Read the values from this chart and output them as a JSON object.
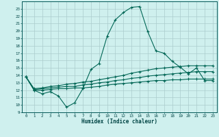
{
  "xlabel": "Humidex (Indice chaleur)",
  "bg_color": "#cff0ee",
  "grid_color": "#aacccc",
  "line_color": "#006655",
  "xlim": [
    -0.5,
    23.5
  ],
  "ylim": [
    9,
    24
  ],
  "yticks": [
    9,
    10,
    11,
    12,
    13,
    14,
    15,
    16,
    17,
    18,
    19,
    20,
    21,
    22,
    23
  ],
  "xticks": [
    0,
    1,
    2,
    3,
    4,
    5,
    6,
    7,
    8,
    9,
    10,
    11,
    12,
    13,
    14,
    15,
    16,
    17,
    18,
    19,
    20,
    21,
    22,
    23
  ],
  "line1_x": [
    0,
    1,
    2,
    3,
    4,
    5,
    6,
    7,
    8,
    9,
    10,
    11,
    12,
    13,
    14,
    15,
    16,
    17,
    18,
    19,
    20,
    21,
    22,
    23
  ],
  "line1_y": [
    13.8,
    12.0,
    11.5,
    11.8,
    11.2,
    9.7,
    10.3,
    12.2,
    14.8,
    15.6,
    19.3,
    21.5,
    22.5,
    23.2,
    23.3,
    19.9,
    17.3,
    17.0,
    15.9,
    15.1,
    14.2,
    15.0,
    13.3,
    13.3
  ],
  "line2_x": [
    0,
    1,
    2,
    3,
    4,
    5,
    6,
    7,
    8,
    9,
    10,
    11,
    12,
    13,
    14,
    15,
    16,
    17,
    18,
    19,
    20,
    21,
    22,
    23
  ],
  "line2_y": [
    13.8,
    12.0,
    12.0,
    12.1,
    12.2,
    12.2,
    12.3,
    12.3,
    12.4,
    12.5,
    12.7,
    12.8,
    12.9,
    13.0,
    13.1,
    13.2,
    13.3,
    13.3,
    13.4,
    13.4,
    13.5,
    13.5,
    13.5,
    13.5
  ],
  "line3_x": [
    0,
    1,
    2,
    3,
    4,
    5,
    6,
    7,
    8,
    9,
    10,
    11,
    12,
    13,
    14,
    15,
    16,
    17,
    18,
    19,
    20,
    21,
    22,
    23
  ],
  "line3_y": [
    13.8,
    12.1,
    12.2,
    12.3,
    12.4,
    12.5,
    12.5,
    12.7,
    12.8,
    13.0,
    13.1,
    13.3,
    13.4,
    13.6,
    13.7,
    13.9,
    14.0,
    14.1,
    14.2,
    14.3,
    14.4,
    14.5,
    14.5,
    14.5
  ],
  "line4_x": [
    0,
    1,
    2,
    3,
    4,
    5,
    6,
    7,
    8,
    9,
    10,
    11,
    12,
    13,
    14,
    15,
    16,
    17,
    18,
    19,
    20,
    21,
    22,
    23
  ],
  "line4_y": [
    13.8,
    12.2,
    12.3,
    12.5,
    12.6,
    12.8,
    12.9,
    13.1,
    13.2,
    13.4,
    13.6,
    13.8,
    14.0,
    14.3,
    14.5,
    14.7,
    14.9,
    15.0,
    15.1,
    15.2,
    15.3,
    15.3,
    15.3,
    15.3
  ]
}
